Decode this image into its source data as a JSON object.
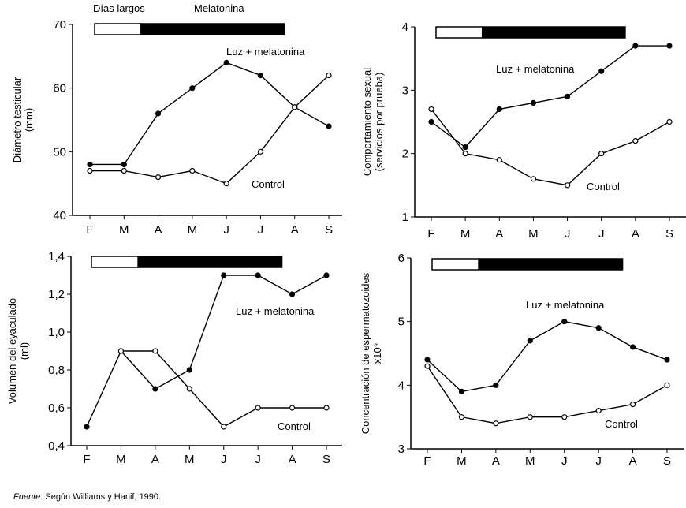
{
  "header": {
    "long_days_label": "Días largos",
    "melatonin_label": "Melatonina"
  },
  "source": {
    "prefix": "Fuente",
    "text": ": Según Williams y Hanif, 1990."
  },
  "chart_data": [
    {
      "type": "line",
      "id": "testicular-diameter",
      "ylabel": [
        "Diámetro testicular",
        "(mm)"
      ],
      "xlabel": "",
      "categories": [
        "F",
        "M",
        "A",
        "M",
        "J",
        "J",
        "A",
        "S"
      ],
      "ylim": [
        40,
        70
      ],
      "yticks": [
        40,
        50,
        60,
        70
      ],
      "ytick_labels": [
        "40",
        "50",
        "60",
        "70"
      ],
      "treatment_bar": {
        "long_days_months": [
          0,
          1.5
        ],
        "melatonin_months": [
          1.5,
          5.7
        ]
      },
      "series": [
        {
          "name": "Luz + melatonina",
          "marker": "filled",
          "values": [
            48,
            48,
            56,
            60,
            64,
            62,
            57,
            54
          ]
        },
        {
          "name": "Control",
          "marker": "open",
          "values": [
            47,
            47,
            46,
            47,
            45,
            50,
            57,
            62
          ]
        }
      ],
      "annotations": [
        {
          "text": "Luz + melatonina",
          "series": "Luz + melatonina"
        },
        {
          "text": "Control",
          "series": "Control"
        }
      ]
    },
    {
      "type": "line",
      "id": "sexual-behaviour",
      "ylabel": [
        "Comportamiento sexual",
        "(servicios por prueba)"
      ],
      "xlabel": "",
      "categories": [
        "F",
        "M",
        "A",
        "M",
        "J",
        "J",
        "A",
        "S"
      ],
      "ylim": [
        1,
        4
      ],
      "yticks": [
        1,
        2,
        3,
        4
      ],
      "ytick_labels": [
        "1",
        "2",
        "3",
        "4"
      ],
      "treatment_bar": {
        "long_days_months": [
          0,
          1.5
        ],
        "melatonin_months": [
          1.5,
          5.7
        ]
      },
      "series": [
        {
          "name": "Luz + melatonina",
          "marker": "filled",
          "values": [
            2.5,
            2.1,
            2.7,
            2.8,
            2.9,
            3.3,
            3.7,
            3.7
          ]
        },
        {
          "name": "Control",
          "marker": "open",
          "values": [
            2.7,
            2.0,
            1.9,
            1.6,
            1.5,
            2.0,
            2.2,
            2.5
          ]
        }
      ],
      "annotations": [
        {
          "text": "Luz + melatonina",
          "series": "Luz + melatonina"
        },
        {
          "text": "Control",
          "series": "Control"
        }
      ]
    },
    {
      "type": "line",
      "id": "ejaculate-volume",
      "ylabel": [
        "Volumen del eyaculado",
        "(ml)"
      ],
      "xlabel": "",
      "categories": [
        "F",
        "M",
        "A",
        "M",
        "J",
        "J",
        "A",
        "S"
      ],
      "ylim": [
        0.4,
        1.4
      ],
      "yticks": [
        0.4,
        0.6,
        0.8,
        1.0,
        1.2,
        1.4
      ],
      "ytick_labels": [
        "0,4",
        "0,6",
        "0,8",
        "1,0",
        "1,2",
        "1,4"
      ],
      "treatment_bar": {
        "long_days_months": [
          0,
          1.5
        ],
        "melatonin_months": [
          1.5,
          5.7
        ]
      },
      "series": [
        {
          "name": "Luz + melatonina",
          "marker": "filled",
          "values": [
            0.5,
            0.9,
            0.7,
            0.8,
            1.3,
            1.3,
            1.2,
            1.3
          ]
        },
        {
          "name": "Control",
          "marker": "open",
          "values": [
            null,
            0.9,
            0.9,
            0.7,
            0.5,
            0.6,
            0.6,
            0.6
          ]
        }
      ],
      "annotations": [
        {
          "text": "Luz + melatonina",
          "series": "Luz + melatonina"
        },
        {
          "text": "Control",
          "series": "Control"
        }
      ]
    },
    {
      "type": "line",
      "id": "sperm-concentration",
      "ylabel": [
        "Concentración de espermatozoides",
        "x10⁹"
      ],
      "xlabel": "",
      "categories": [
        "F",
        "M",
        "A",
        "M",
        "J",
        "J",
        "A",
        "S"
      ],
      "ylim": [
        3,
        6
      ],
      "yticks": [
        3,
        4,
        5,
        6
      ],
      "ytick_labels": [
        "3",
        "4",
        "5",
        "6"
      ],
      "treatment_bar": {
        "long_days_months": [
          0,
          1.5
        ],
        "melatonin_months": [
          1.5,
          5.7
        ]
      },
      "series": [
        {
          "name": "Luz + melatonina",
          "marker": "filled",
          "values": [
            4.4,
            3.9,
            4.0,
            4.7,
            5.0,
            4.9,
            4.6,
            4.4
          ]
        },
        {
          "name": "Control",
          "marker": "open",
          "values": [
            4.3,
            3.5,
            3.4,
            3.5,
            3.5,
            3.6,
            3.7,
            4.0
          ]
        }
      ],
      "annotations": [
        {
          "text": "Luz + melatonina",
          "series": "Luz + melatonina"
        },
        {
          "text": "Control",
          "series": "Control"
        }
      ]
    }
  ]
}
